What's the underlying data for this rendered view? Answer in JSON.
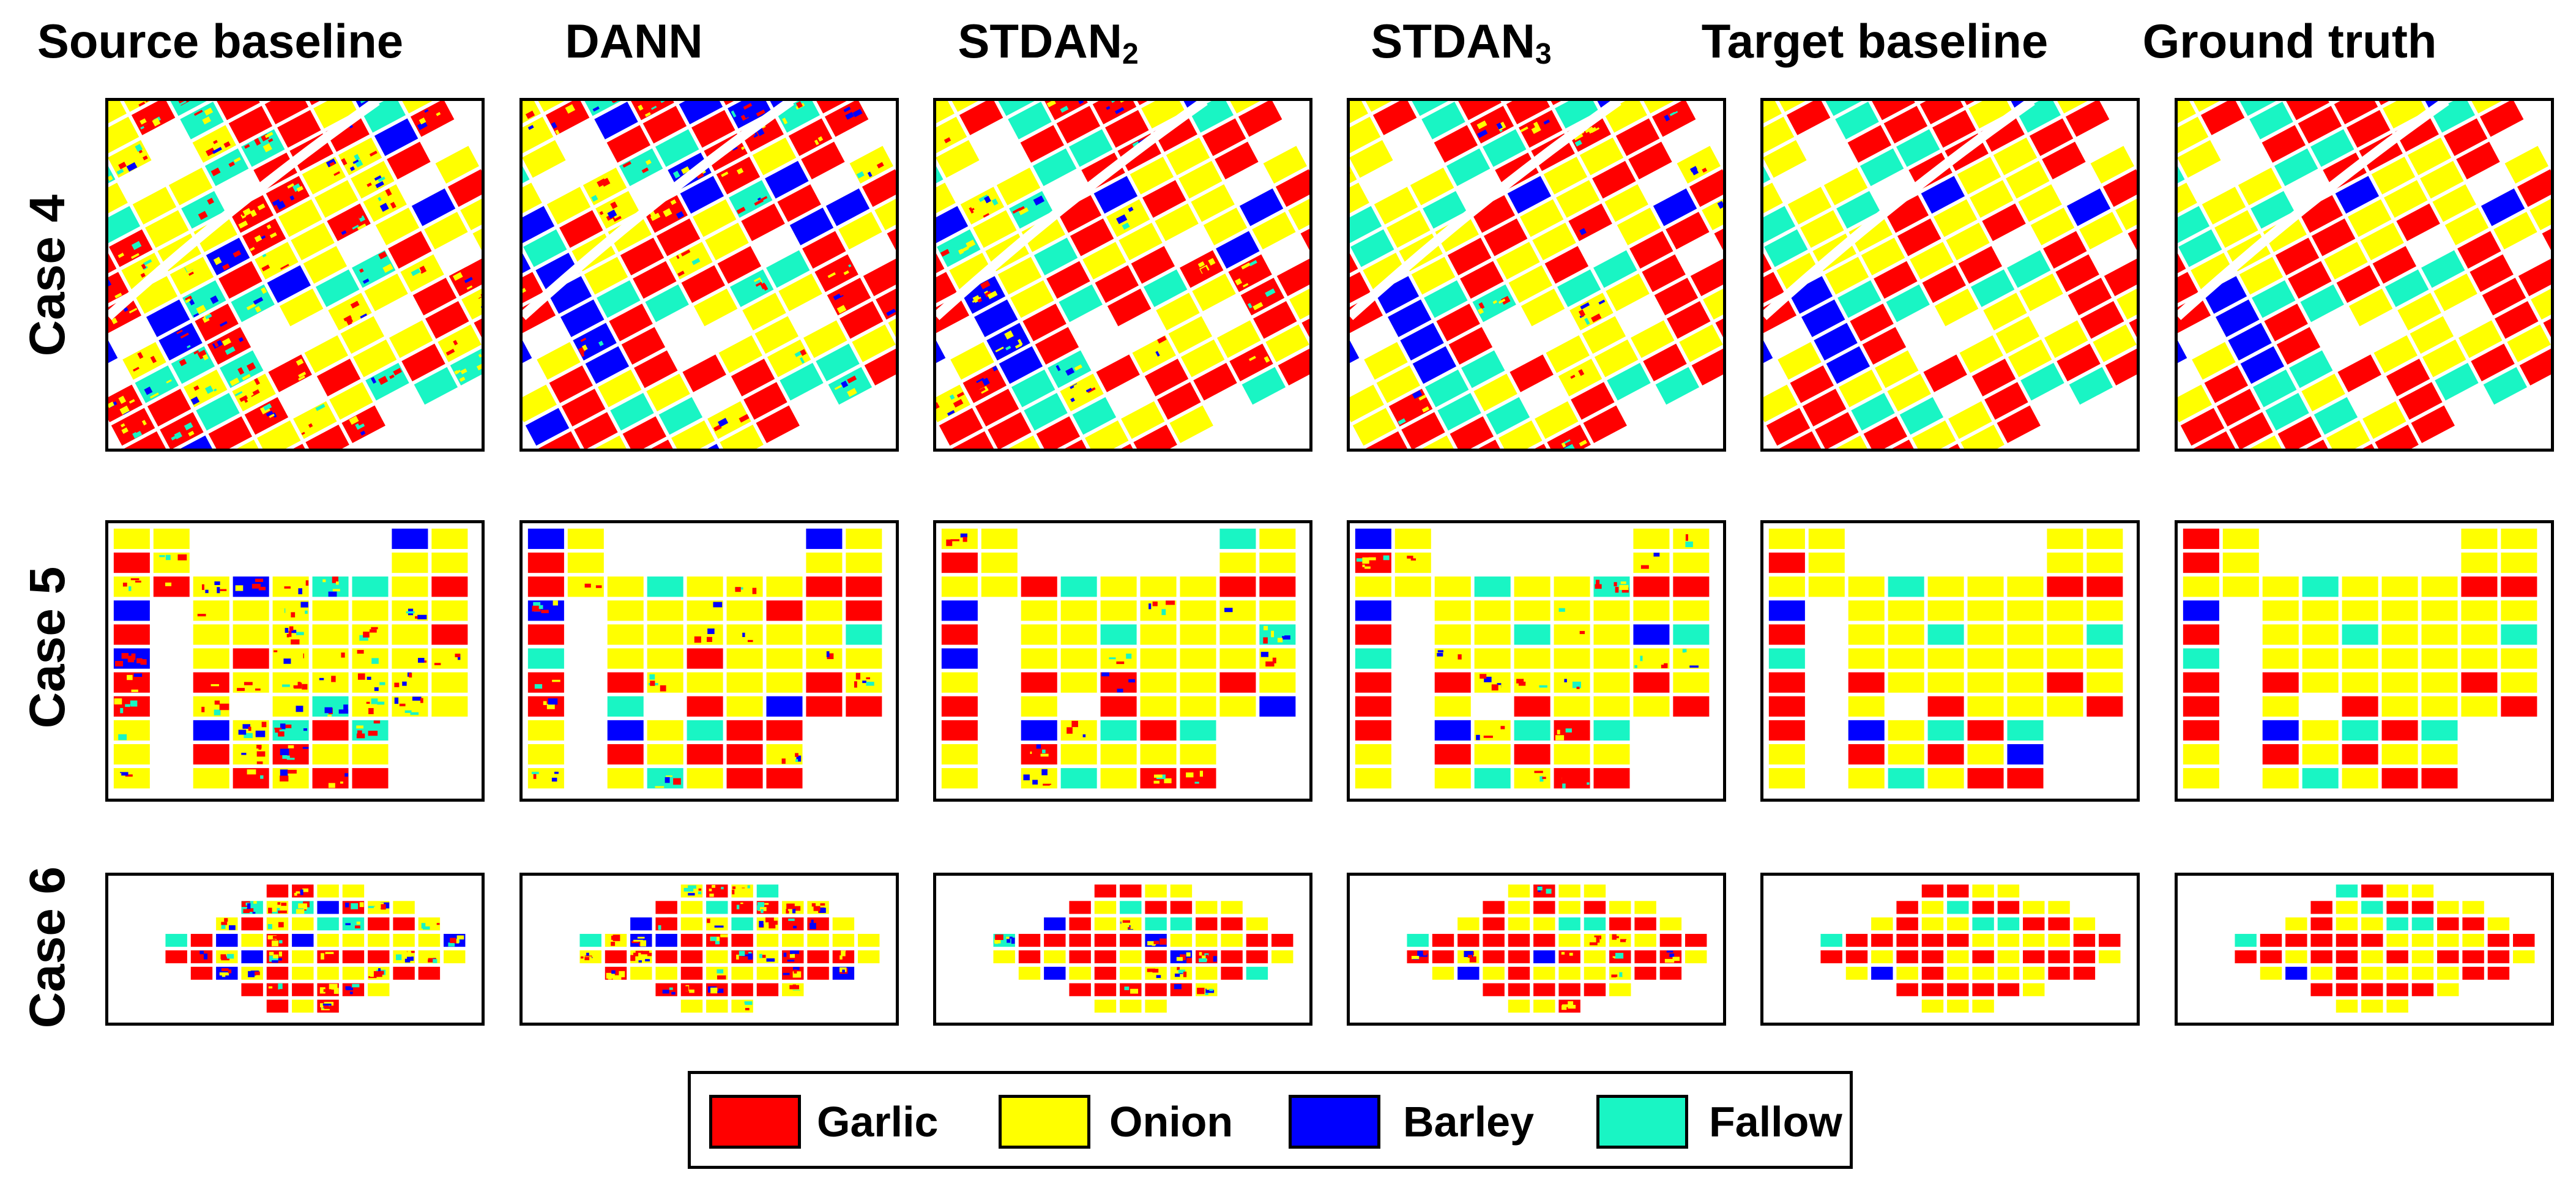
{
  "columns": [
    {
      "id": "source-baseline",
      "label": "Source baseline",
      "sub": ""
    },
    {
      "id": "dann",
      "label": "DANN",
      "sub": ""
    },
    {
      "id": "stdan2",
      "label": "STDAN",
      "sub": "2"
    },
    {
      "id": "stdan3",
      "label": "STDAN",
      "sub": "3"
    },
    {
      "id": "target-baseline",
      "label": "Target baseline",
      "sub": ""
    },
    {
      "id": "ground-truth",
      "label": "Ground truth",
      "sub": ""
    }
  ],
  "rows": [
    {
      "id": "case-4",
      "label": "Case 4"
    },
    {
      "id": "case-5",
      "label": "Case 5"
    },
    {
      "id": "case-6",
      "label": "Case 6"
    }
  ],
  "legend": [
    {
      "id": "garlic",
      "label": "Garlic",
      "color": "#ff0000"
    },
    {
      "id": "onion",
      "label": "Onion",
      "color": "#ffff00"
    },
    {
      "id": "barley",
      "label": "Barley",
      "color": "#0000ff"
    },
    {
      "id": "fallow",
      "label": "Fallow",
      "color": "#19f5c4"
    }
  ],
  "colors": {
    "garlic": "#ff0000",
    "onion": "#ffff00",
    "barley": "#0000ff",
    "fallow": "#19f5c4",
    "background": "#ffffff"
  },
  "noise_level": {
    "source-baseline": 0.34,
    "dann": 0.22,
    "stdan2": 0.14,
    "stdan3": 0.12,
    "target-baseline": 0.06,
    "ground-truth": 0
  }
}
